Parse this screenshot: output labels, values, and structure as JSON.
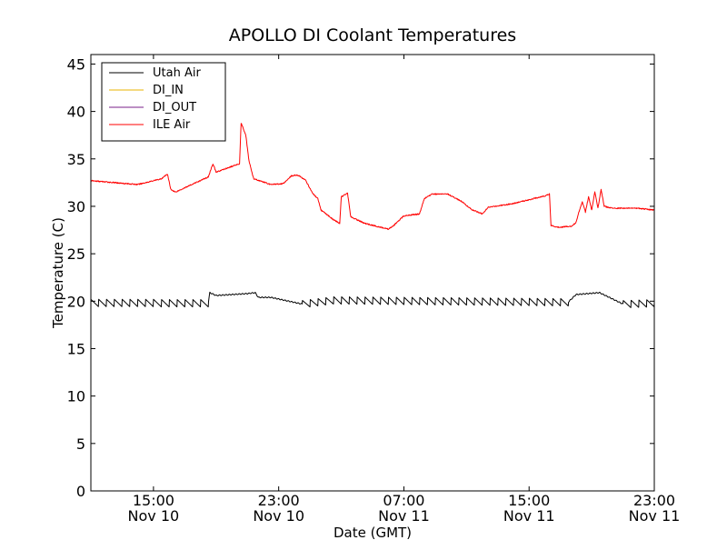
{
  "chart_data": {
    "type": "line",
    "title": "APOLLO DI Coolant Temperatures",
    "xlabel": "Date (GMT)",
    "ylabel": "Temperature (C)",
    "ylim": [
      0,
      46
    ],
    "yticks": [
      0,
      5,
      10,
      15,
      20,
      25,
      30,
      35,
      40,
      45
    ],
    "x_unit": "hours since Nov 10 11:00 GMT",
    "xlim": [
      0,
      36
    ],
    "xticks": [
      {
        "x": 4,
        "time": "15:00",
        "date": "Nov 10"
      },
      {
        "x": 12,
        "time": "23:00",
        "date": "Nov 10"
      },
      {
        "x": 20,
        "time": "07:00",
        "date": "Nov 11"
      },
      {
        "x": 28,
        "time": "15:00",
        "date": "Nov 11"
      },
      {
        "x": 36,
        "time": "23:00",
        "date": "Nov 11"
      }
    ],
    "legend_position": "top-left",
    "series": [
      {
        "name": "Utah Air",
        "color": "#000000",
        "sawtooth_amplitude": 0.5,
        "points": [
          [
            0,
            19.8
          ],
          [
            7.5,
            19.8
          ],
          [
            7.6,
            20.9
          ],
          [
            8.0,
            20.6
          ],
          [
            10.0,
            20.8
          ],
          [
            10.5,
            20.9
          ],
          [
            10.7,
            20.4
          ],
          [
            11.5,
            20.4
          ],
          [
            13.5,
            19.7
          ],
          [
            15.5,
            20.1
          ],
          [
            30.5,
            19.9
          ],
          [
            31.0,
            20.7
          ],
          [
            32.5,
            20.9
          ],
          [
            34.0,
            19.7
          ],
          [
            36,
            19.8
          ]
        ],
        "saw_ranges": [
          [
            0,
            7.5
          ],
          [
            13.5,
            30.5
          ],
          [
            34.0,
            36
          ]
        ]
      },
      {
        "name": "DI_IN",
        "color": "#e8b500",
        "points": []
      },
      {
        "name": "DI_OUT",
        "color": "#7a1f8a",
        "points": []
      },
      {
        "name": "ILE Air",
        "color": "#ff0000",
        "points": [
          [
            0,
            32.7
          ],
          [
            3.0,
            32.3
          ],
          [
            4.5,
            32.9
          ],
          [
            4.9,
            33.4
          ],
          [
            5.1,
            31.8
          ],
          [
            5.4,
            31.5
          ],
          [
            7.5,
            33.1
          ],
          [
            7.8,
            34.5
          ],
          [
            8.0,
            33.6
          ],
          [
            9.5,
            34.5
          ],
          [
            9.6,
            38.8
          ],
          [
            9.9,
            37.5
          ],
          [
            10.1,
            34.8
          ],
          [
            10.4,
            32.9
          ],
          [
            11.5,
            32.3
          ],
          [
            12.3,
            32.4
          ],
          [
            12.8,
            33.2
          ],
          [
            13.2,
            33.3
          ],
          [
            13.7,
            32.8
          ],
          [
            14.2,
            31.3
          ],
          [
            14.5,
            30.8
          ],
          [
            14.7,
            29.6
          ],
          [
            15.5,
            28.6
          ],
          [
            15.9,
            28.2
          ],
          [
            16.0,
            31.0
          ],
          [
            16.4,
            31.4
          ],
          [
            16.6,
            28.9
          ],
          [
            17.5,
            28.2
          ],
          [
            19.0,
            27.6
          ],
          [
            19.3,
            27.9
          ],
          [
            20.0,
            29.0
          ],
          [
            21.0,
            29.2
          ],
          [
            21.3,
            30.8
          ],
          [
            21.8,
            31.3
          ],
          [
            22.8,
            31.3
          ],
          [
            23.7,
            30.5
          ],
          [
            24.3,
            29.7
          ],
          [
            25.0,
            29.2
          ],
          [
            25.4,
            29.9
          ],
          [
            27.0,
            30.3
          ],
          [
            29.0,
            31.1
          ],
          [
            29.3,
            31.3
          ],
          [
            29.4,
            28.0
          ],
          [
            29.8,
            27.8
          ],
          [
            30.7,
            27.9
          ],
          [
            31.0,
            28.3
          ],
          [
            31.2,
            29.5
          ],
          [
            31.4,
            30.5
          ],
          [
            31.6,
            29.4
          ],
          [
            31.8,
            31.0
          ],
          [
            32.0,
            29.6
          ],
          [
            32.2,
            31.5
          ],
          [
            32.4,
            29.8
          ],
          [
            32.6,
            31.8
          ],
          [
            32.8,
            30.0
          ],
          [
            33.3,
            29.8
          ],
          [
            35.0,
            29.8
          ],
          [
            36,
            29.6
          ]
        ]
      }
    ]
  }
}
